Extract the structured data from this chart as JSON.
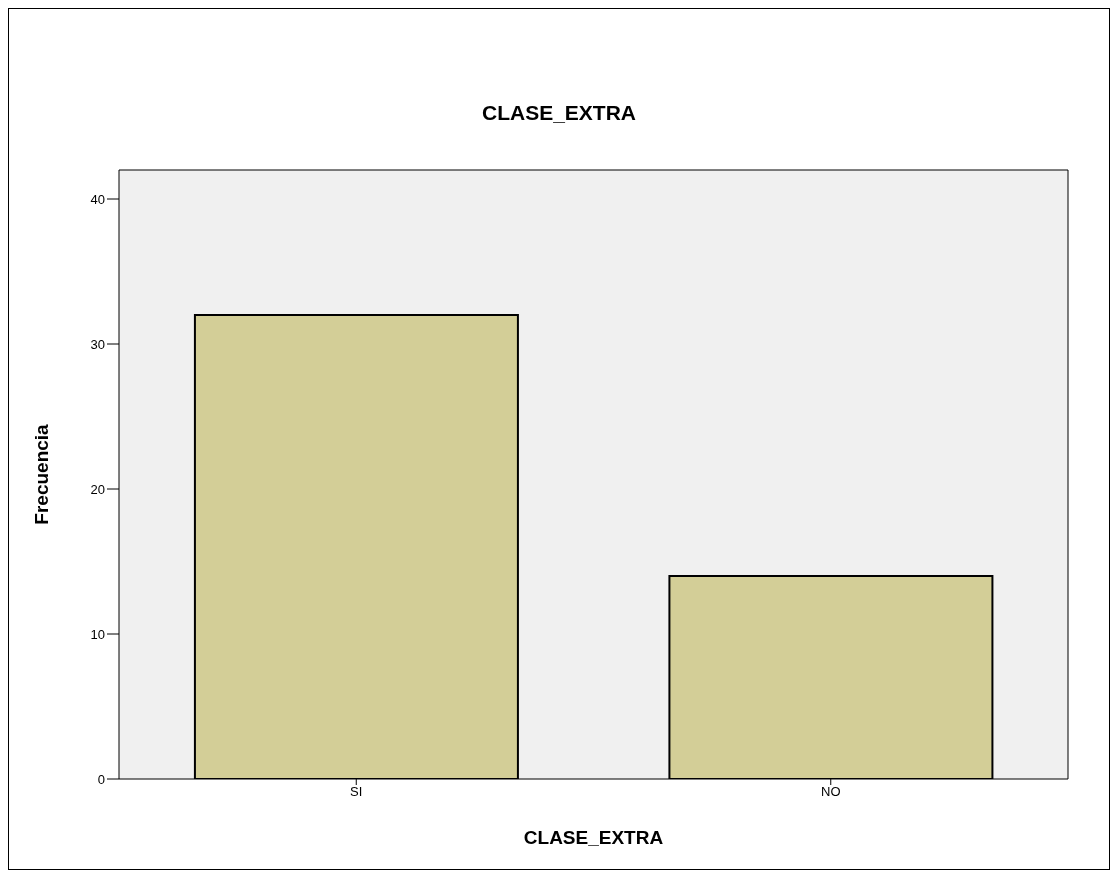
{
  "chart_data": {
    "type": "bar",
    "title": "CLASE_EXTRA",
    "xlabel": "CLASE_EXTRA",
    "ylabel": "Frecuencia",
    "categories": [
      "SI",
      "NO"
    ],
    "values": [
      32,
      14
    ],
    "color": "#d3ce97",
    "ylim": [
      0,
      42
    ],
    "yticks": [
      0,
      10,
      20,
      30,
      40
    ]
  }
}
